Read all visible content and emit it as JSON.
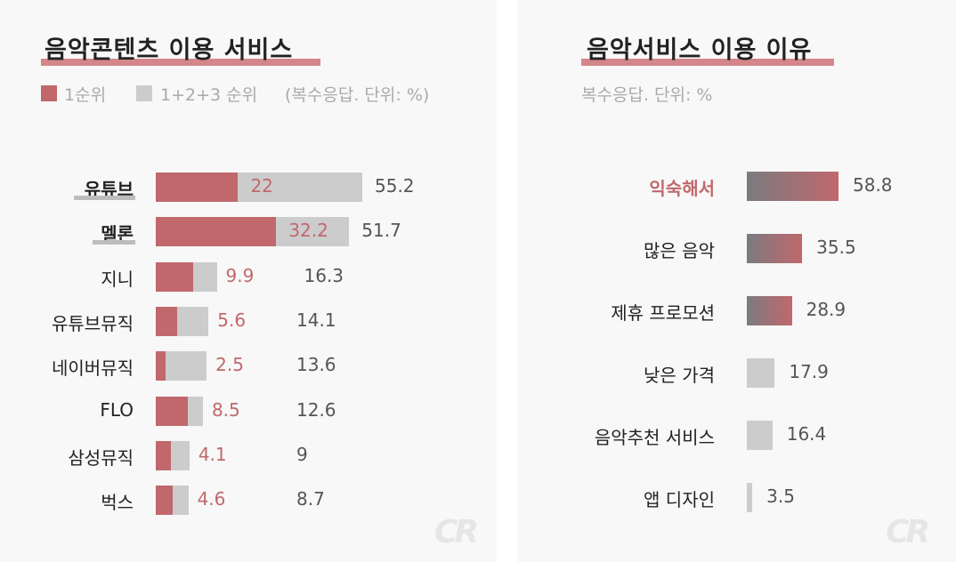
{
  "colors": {
    "accent": "#c0686c",
    "grey": "#cccccc",
    "gradient_start": "#7b7b80"
  },
  "left": {
    "title": "음악콘텐츠 이용 서비스",
    "legend": {
      "first": "1순위",
      "total": "1+2+3 순위",
      "note": "(복수응답. 단위: %)"
    },
    "logo": "CR"
  },
  "right": {
    "title": "음악서비스 이용 이유",
    "subtitle": "복수응답. 단위: %",
    "logo": "CR"
  },
  "chart_data": [
    {
      "type": "bar",
      "orientation": "horizontal",
      "categories": [
        "유튜브",
        "멜론",
        "지니",
        "유튜브뮤직",
        "네이버뮤직",
        "FLO",
        "삼성뮤직",
        "벅스"
      ],
      "highlighted_categories": [
        "유튜브",
        "멜론"
      ],
      "series": [
        {
          "name": "1순위",
          "values": [
            22,
            32.2,
            9.9,
            5.6,
            2.5,
            8.5,
            4.1,
            4.6
          ]
        },
        {
          "name": "1+2+3 순위",
          "values": [
            55.2,
            51.7,
            16.3,
            14.1,
            13.6,
            12.6,
            9,
            8.7
          ]
        }
      ],
      "value_labels": {
        "first": [
          "22",
          "32.2",
          "9.9",
          "5.6",
          "2.5",
          "8.5",
          "4.1",
          "4.6"
        ],
        "total": [
          "55.2",
          "51.7",
          "16.3",
          "14.1",
          "13.6",
          "12.6",
          "9",
          "8.7"
        ]
      },
      "grid": false
    },
    {
      "type": "bar",
      "orientation": "horizontal",
      "categories": [
        "익숙해서",
        "많은 음악",
        "제휴 프로모션",
        "낮은 가격",
        "음악추천 서비스",
        "앱 디자인"
      ],
      "highlighted_categories": [
        "익숙해서"
      ],
      "values": [
        58.8,
        35.5,
        28.9,
        17.9,
        16.4,
        3.5
      ],
      "value_labels": [
        "58.8",
        "35.5",
        "28.9",
        "17.9",
        "16.4",
        "3.5"
      ],
      "gradient_bars": [
        true,
        true,
        true,
        false,
        false,
        false
      ],
      "grid": false
    }
  ]
}
